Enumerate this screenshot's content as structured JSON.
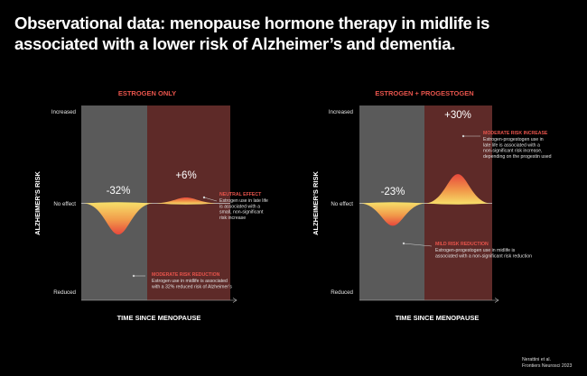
{
  "title": {
    "line1": "Observational data: menopause hormone therapy in midlife is",
    "line2": "associated with a lower risk of Alzheimer’s and dementia."
  },
  "citation": {
    "line1": "Nerattini et al.",
    "line2": "Frontiers Neurosci 2023"
  },
  "colors": {
    "background": "#000000",
    "midlife_panel": "#5a5a5a",
    "late_life_panel": "#5e2a28",
    "panel_title": "#e8544c",
    "annotation_title": "#e8544c",
    "curve_deep": "#e8483c",
    "curve_light": "#f7e06a"
  },
  "chart_data": [
    {
      "type": "area",
      "title": "ESTROGEN ONLY",
      "xlabel": "TIME SINCE MENOPAUSE",
      "ylabel": "ALZHEIMER’S RISK",
      "yticks": [
        "Increased",
        "No effect",
        "Reduced"
      ],
      "ylim": [
        -100,
        100
      ],
      "series": [
        {
          "value": -32,
          "label": "-32%",
          "annotation_title": "MODERATE RISK REDUCTION",
          "annotation_text": [
            "Estrogen use in midlife is associated",
            "with a 32% reduced risk of Alzheimer’s"
          ]
        },
        {
          "value": 6,
          "label": "+6%",
          "annotation_title": "NEUTRAL EFFECT",
          "annotation_text": [
            "Estrogen use in late life",
            "is associated with a",
            "small, non-significant",
            "risk increase"
          ]
        }
      ]
    },
    {
      "type": "area",
      "title": "ESTROGEN + PROGESTOGEN",
      "xlabel": "TIME SINCE MENOPAUSE",
      "ylabel": "ALZHEIMER’S RISK",
      "yticks": [
        "Increased",
        "No effect",
        "Reduced"
      ],
      "ylim": [
        -100,
        100
      ],
      "series": [
        {
          "value": -23,
          "label": "-23%",
          "annotation_title": "MILD RISK REDUCTION",
          "annotation_text": [
            "Estrogen-progestogen use in midlife is",
            "associated with a non-significant risk reduction"
          ]
        },
        {
          "value": 30,
          "label": "+30%",
          "annotation_title": "MODERATE RISK INCREASE",
          "annotation_text": [
            "Estrogen-progestogen use in",
            "late life is associated with a",
            "non-significant risk increase,",
            "depending on the progestin used"
          ]
        }
      ]
    }
  ]
}
